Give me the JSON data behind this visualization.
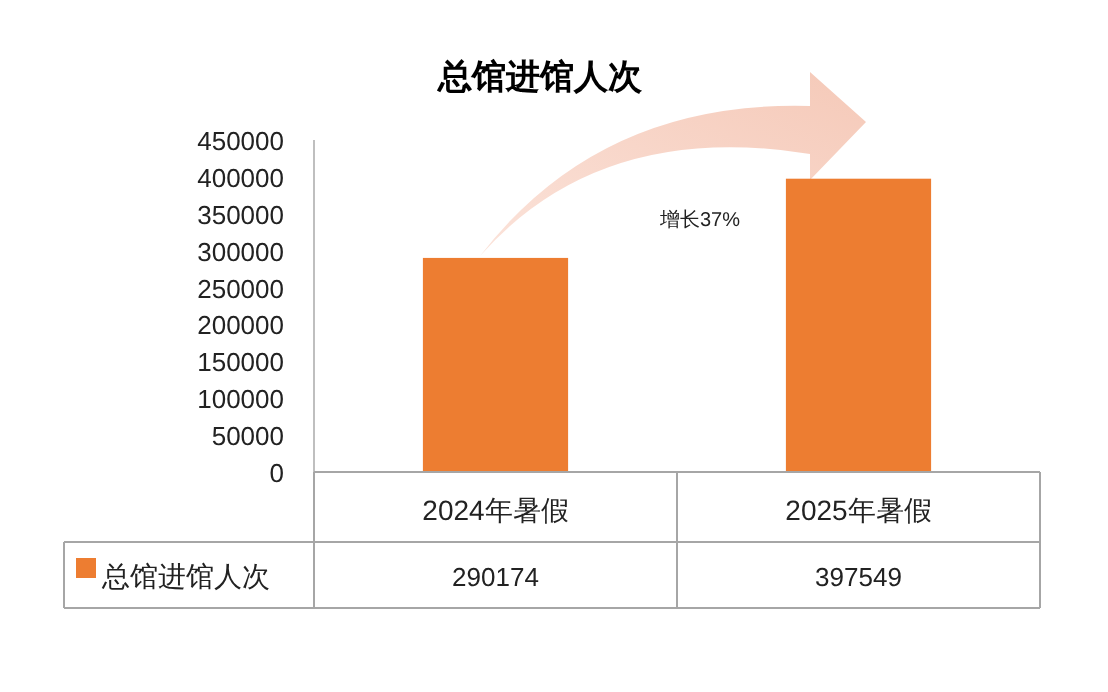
{
  "chart_data": {
    "type": "bar",
    "title": "总馆进馆人次",
    "categories": [
      "2024年暑假",
      "2025年暑假"
    ],
    "series": [
      {
        "name": "总馆进馆人次",
        "color": "#ed7d31",
        "values": [
          290174,
          397549
        ]
      }
    ],
    "ylim": [
      0,
      450000
    ],
    "yticks": [
      0,
      50000,
      100000,
      150000,
      200000,
      250000,
      300000,
      350000,
      400000,
      450000
    ],
    "data_labels": true,
    "legend": "bottom left",
    "grid": false,
    "annotations": [
      "增长37%"
    ]
  }
}
